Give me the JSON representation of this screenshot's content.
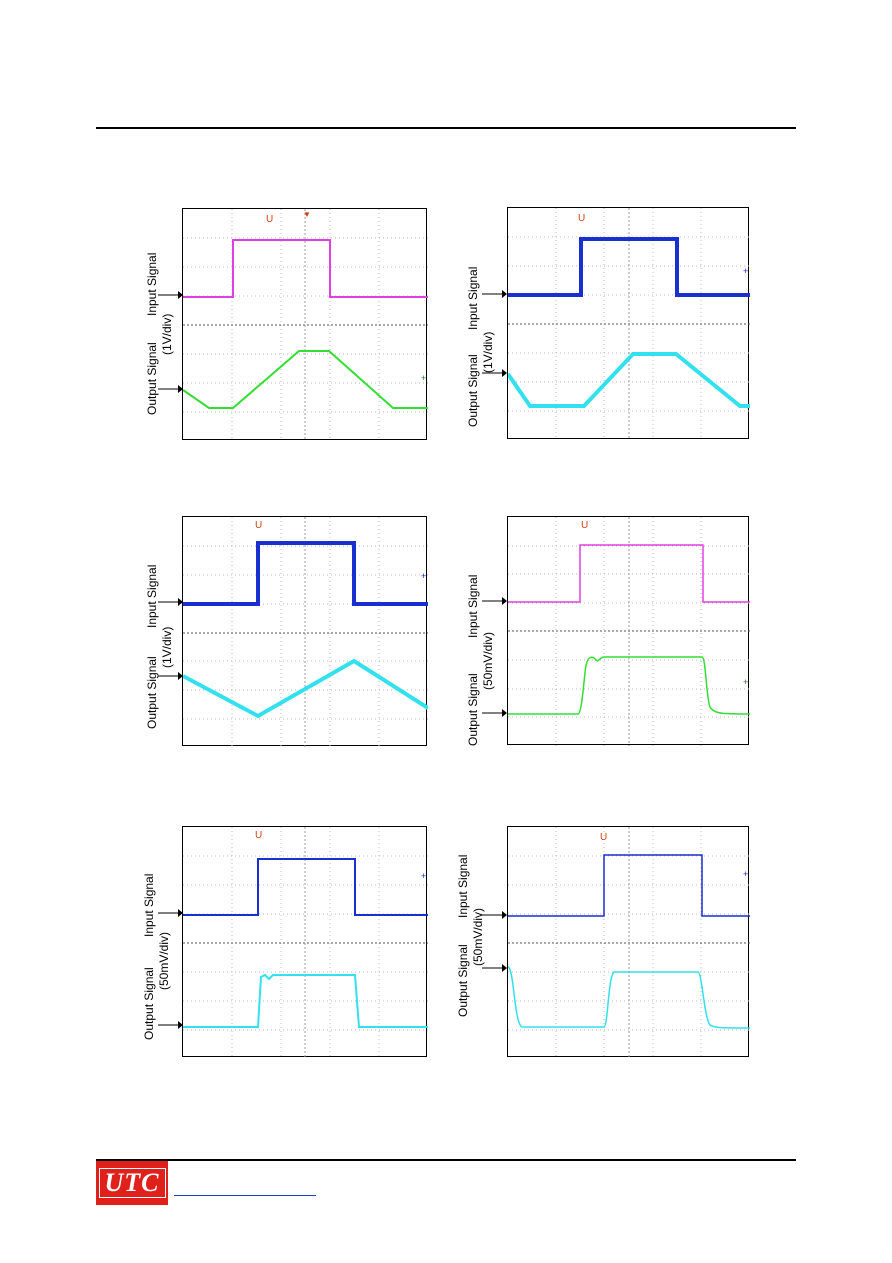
{
  "logo": {
    "text": "UTC",
    "color": "#e0201a"
  },
  "scopes": [
    {
      "id": "s1",
      "input_label": "Input Signal",
      "output_label": "Output Signal",
      "scale": "(1V/div)",
      "trace_colors": {
        "input": "#e040e0",
        "output": "#33dd33"
      }
    },
    {
      "id": "s2",
      "input_label": "Input Signal",
      "output_label": "Output Signal",
      "scale": "(1V/div)",
      "trace_colors": {
        "input": "#1a2fd0",
        "output": "#33e0ee"
      }
    },
    {
      "id": "s3",
      "input_label": "Input Signal",
      "output_label": "Output Signal",
      "scale": "(1V/div)",
      "trace_colors": {
        "input": "#1a2fd0",
        "output": "#33e0ee"
      }
    },
    {
      "id": "s4",
      "input_label": "Input Signal",
      "output_label": "Output Signal",
      "scale": "(50mV/div)",
      "trace_colors": {
        "input": "#e040e0",
        "output": "#33dd33"
      }
    },
    {
      "id": "s5",
      "input_label": "Input Signal",
      "output_label": "Output Signal",
      "scale": "(50mV/div)",
      "trace_colors": {
        "input": "#1a2fd0",
        "output": "#33e0ee"
      }
    },
    {
      "id": "s6",
      "input_label": "Input Signal",
      "output_label": "Output Signal",
      "scale": "(50mV/div)",
      "trace_colors": {
        "input": "#1a2fd0",
        "output": "#33e0ee"
      }
    }
  ]
}
